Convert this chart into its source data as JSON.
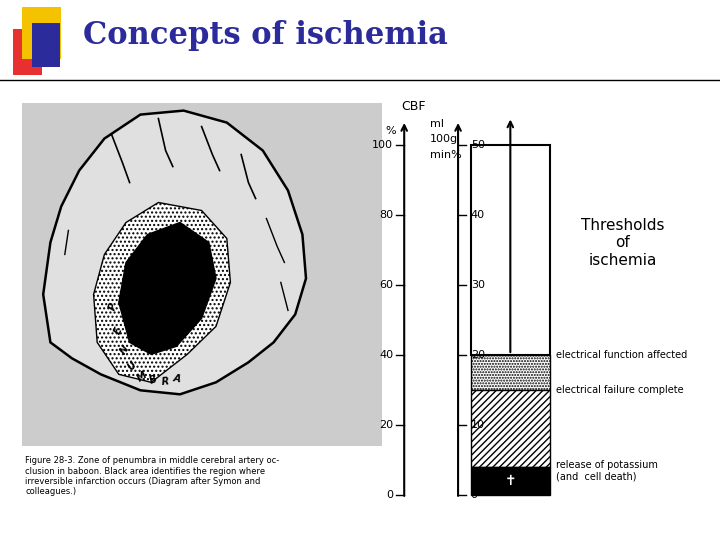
{
  "title": "Concepts of ischemia",
  "title_color": "#2B2B9B",
  "title_fontsize": 22,
  "bg_color": "#FFFFFF",
  "logo_yellow": "#F5C200",
  "logo_red": "#E83030",
  "logo_blue": "#2B2B9B",
  "cbf_label": "CBF",
  "percent_label": "%",
  "ml_label": "ml",
  "unit_label": "100g",
  "min_label": "min%",
  "yticks_left": [
    0,
    20,
    40,
    60,
    80,
    100
  ],
  "yticks_right": [
    0,
    10,
    20,
    30,
    40,
    50
  ],
  "threshold_title": "Thresholds\nof\nischemia",
  "threshold_title_fontsize": 11,
  "label_electrical_function": "electrical function affected",
  "label_electrical_failure": "electrical failure complete",
  "label_potassium": "release of potassium\n(and  cell death)",
  "annotation_fontsize": 7,
  "figure_caption": "Figure 28-3. Zone of penumbra in middle cerebral artery oc-\nclusion in baboon. Black area identifies the region where\nirreversible infarction occurs (Diagram after Symon and\ncolleagues.)",
  "caption_fontsize": 6
}
